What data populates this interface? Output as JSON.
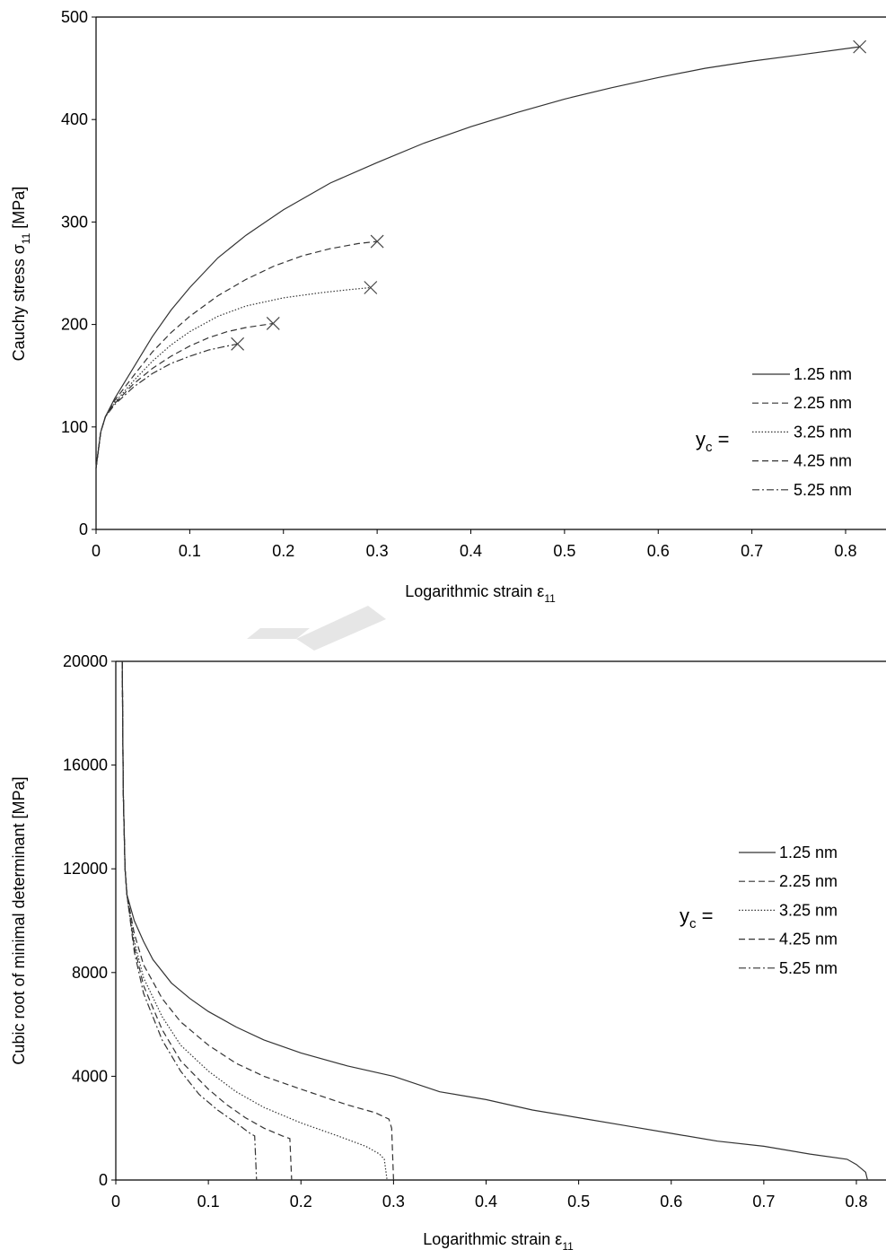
{
  "chart_data": [
    {
      "type": "line",
      "title": "",
      "xlabel": "Logarithmic strain ε11",
      "xlabel_main": "Logarithmic strain ε",
      "xlabel_sub": "11",
      "ylabel": "Cauchy stress σ11 [MPa]",
      "ylabel_main": "Cauchy stress σ",
      "ylabel_sub": "11",
      "ylabel_tail": " [MPa]",
      "xlim": [
        0,
        0.8
      ],
      "ylim": [
        0,
        500
      ],
      "xticks": [
        0,
        0.1,
        0.2,
        0.3,
        0.4,
        0.5,
        0.6,
        0.7,
        0.8
      ],
      "xtick_labels": [
        "0",
        "0.1",
        "0.2",
        "0.3",
        "0.4",
        "0.5",
        "0.6",
        "0.7",
        "0.8"
      ],
      "yticks": [
        0,
        100,
        200,
        300,
        400,
        500
      ],
      "ytick_labels": [
        "0",
        "100",
        "200",
        "300",
        "400",
        "500"
      ],
      "grid": false,
      "legend_title": "yc =",
      "legend_title_main": "y",
      "legend_title_sub": "c",
      "legend_title_tail": " =",
      "legend_position": "bottom-right",
      "series": [
        {
          "name": "1.25 nm",
          "style": "solid",
          "x": [
            0,
            0.005,
            0.01,
            0.02,
            0.04,
            0.06,
            0.08,
            0.1,
            0.13,
            0.16,
            0.2,
            0.25,
            0.3,
            0.35,
            0.4,
            0.45,
            0.5,
            0.55,
            0.6,
            0.65,
            0.7,
            0.75,
            0.815
          ],
          "y": [
            60,
            95,
            110,
            128,
            158,
            188,
            214,
            236,
            265,
            287,
            312,
            338,
            358,
            377,
            393,
            407,
            420,
            431,
            441,
            450,
            457,
            463,
            471
          ],
          "end_marker": true
        },
        {
          "name": "2.25 nm",
          "style": "dashed",
          "x": [
            0,
            0.005,
            0.01,
            0.02,
            0.04,
            0.06,
            0.08,
            0.1,
            0.13,
            0.16,
            0.19,
            0.22,
            0.25,
            0.28,
            0.3
          ],
          "y": [
            60,
            95,
            110,
            126,
            150,
            173,
            192,
            208,
            228,
            244,
            257,
            267,
            274,
            279,
            281
          ],
          "end_marker": true
        },
        {
          "name": "3.25 nm",
          "style": "dotted",
          "x": [
            0,
            0.005,
            0.01,
            0.02,
            0.04,
            0.06,
            0.08,
            0.1,
            0.13,
            0.16,
            0.2,
            0.24,
            0.27,
            0.293
          ],
          "y": [
            60,
            95,
            110,
            124,
            145,
            164,
            180,
            193,
            208,
            218,
            226,
            231,
            234,
            236
          ],
          "end_marker": true
        },
        {
          "name": "4.25 nm",
          "style": "dashed",
          "x": [
            0,
            0.005,
            0.01,
            0.02,
            0.04,
            0.06,
            0.08,
            0.1,
            0.12,
            0.14,
            0.16,
            0.189
          ],
          "y": [
            60,
            95,
            110,
            123,
            142,
            157,
            169,
            179,
            187,
            193,
            197,
            201
          ],
          "end_marker": true
        },
        {
          "name": "5.25 nm",
          "style": "dashdot",
          "x": [
            0,
            0.005,
            0.01,
            0.02,
            0.04,
            0.06,
            0.08,
            0.1,
            0.12,
            0.135,
            0.151
          ],
          "y": [
            60,
            95,
            110,
            122,
            139,
            152,
            162,
            169,
            175,
            178,
            181
          ],
          "end_marker": true
        }
      ]
    },
    {
      "type": "line",
      "title": "",
      "xlabel": "Logarithmic strain ε11",
      "xlabel_main": "Logarithmic strain ε",
      "xlabel_sub": "11",
      "ylabel": "Cubic root of minimal determinant [MPa]",
      "ylabel_main": "Cubic root of minimal determinant [MPa]",
      "ylabel_sub": "",
      "ylabel_tail": "",
      "xlim": [
        0,
        0.8
      ],
      "ylim": [
        0,
        20000
      ],
      "xticks": [
        0,
        0.1,
        0.2,
        0.3,
        0.4,
        0.5,
        0.6,
        0.7,
        0.8
      ],
      "xtick_labels": [
        "0",
        "0.1",
        "0.2",
        "0.3",
        "0.4",
        "0.5",
        "0.6",
        "0.7",
        "0.8"
      ],
      "yticks": [
        0,
        4000,
        8000,
        12000,
        16000,
        20000
      ],
      "ytick_labels": [
        "0",
        "4000",
        "8000",
        "12000",
        "16000",
        "20000"
      ],
      "grid": false,
      "legend_title": "yc =",
      "legend_title_main": "y",
      "legend_title_sub": "c",
      "legend_title_tail": " =",
      "legend_position": "right",
      "series": [
        {
          "name": "1.25 nm",
          "style": "solid",
          "x": [
            0.007,
            0.008,
            0.01,
            0.012,
            0.02,
            0.03,
            0.04,
            0.06,
            0.08,
            0.1,
            0.13,
            0.16,
            0.2,
            0.25,
            0.3,
            0.35,
            0.4,
            0.45,
            0.5,
            0.55,
            0.6,
            0.65,
            0.7,
            0.75,
            0.79,
            0.8,
            0.81,
            0.812
          ],
          "y": [
            20000,
            15000,
            12000,
            11000,
            10000,
            9200,
            8500,
            7600,
            7000,
            6500,
            5900,
            5400,
            4900,
            4400,
            4000,
            3400,
            3100,
            2700,
            2400,
            2100,
            1800,
            1500,
            1300,
            1000,
            800,
            600,
            300,
            0
          ],
          "end_marker": false
        },
        {
          "name": "2.25 nm",
          "style": "dashed",
          "x": [
            0.007,
            0.008,
            0.01,
            0.012,
            0.02,
            0.03,
            0.05,
            0.07,
            0.1,
            0.13,
            0.16,
            0.2,
            0.25,
            0.28,
            0.295,
            0.298,
            0.3
          ],
          "y": [
            20000,
            15000,
            12000,
            11000,
            9500,
            8300,
            7000,
            6100,
            5200,
            4500,
            4000,
            3500,
            2900,
            2600,
            2350,
            2000,
            0
          ],
          "end_marker": false
        },
        {
          "name": "3.25 nm",
          "style": "dotted",
          "x": [
            0.007,
            0.008,
            0.01,
            0.012,
            0.02,
            0.03,
            0.05,
            0.07,
            0.1,
            0.13,
            0.16,
            0.2,
            0.24,
            0.27,
            0.285,
            0.29,
            0.293
          ],
          "y": [
            20000,
            15000,
            12000,
            11000,
            9200,
            7800,
            6300,
            5200,
            4200,
            3400,
            2800,
            2200,
            1700,
            1300,
            1000,
            800,
            0
          ],
          "end_marker": false
        },
        {
          "name": "4.25 nm",
          "style": "dashed",
          "x": [
            0.007,
            0.008,
            0.01,
            0.012,
            0.02,
            0.03,
            0.05,
            0.07,
            0.1,
            0.12,
            0.14,
            0.16,
            0.18,
            0.188,
            0.19
          ],
          "y": [
            20000,
            15000,
            12000,
            11000,
            9000,
            7500,
            5800,
            4600,
            3500,
            2900,
            2400,
            2000,
            1700,
            1600,
            0
          ],
          "end_marker": false
        },
        {
          "name": "5.25 nm",
          "style": "dashdot",
          "x": [
            0.007,
            0.008,
            0.01,
            0.012,
            0.02,
            0.03,
            0.05,
            0.07,
            0.09,
            0.11,
            0.13,
            0.145,
            0.15,
            0.152
          ],
          "y": [
            20000,
            15000,
            12000,
            11000,
            8800,
            7200,
            5400,
            4200,
            3300,
            2700,
            2200,
            1800,
            1700,
            0
          ],
          "end_marker": false
        }
      ]
    }
  ]
}
